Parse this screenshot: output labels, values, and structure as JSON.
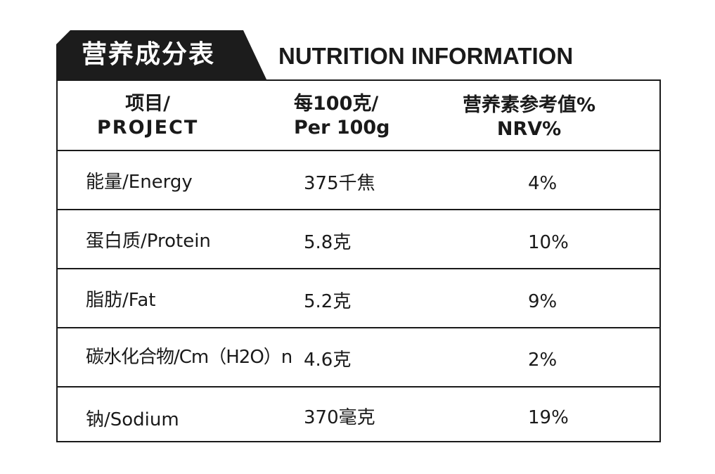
{
  "header": {
    "title_cn": "营养成分表",
    "title_en": "NUTRITION INFORMATION"
  },
  "table": {
    "columns": [
      {
        "line1": "项目/",
        "line2": "PROJECT"
      },
      {
        "line1": "每100克/",
        "line2": "Per 100g"
      },
      {
        "line1": "营养素参考值%",
        "line2": "NRV%"
      }
    ],
    "rows": [
      {
        "item": "能量/Energy",
        "per100g": "375千焦",
        "nrv": "4%"
      },
      {
        "item": "蛋白质/Protein",
        "per100g": "5.8克",
        "nrv": "10%"
      },
      {
        "item": "脂肪/Fat",
        "per100g": "5.2克",
        "nrv": "9%"
      },
      {
        "item": "碳水化合物/Cm（H2O）n",
        "per100g": "4.6克",
        "nrv": "2%"
      },
      {
        "item": "钠/Sodium",
        "per100g": "370毫克",
        "nrv": "19%"
      }
    ]
  },
  "colors": {
    "tab_background": "#1c1c1c",
    "text": "#1a1a1a",
    "border": "#1a1a1a",
    "background": "#ffffff"
  }
}
